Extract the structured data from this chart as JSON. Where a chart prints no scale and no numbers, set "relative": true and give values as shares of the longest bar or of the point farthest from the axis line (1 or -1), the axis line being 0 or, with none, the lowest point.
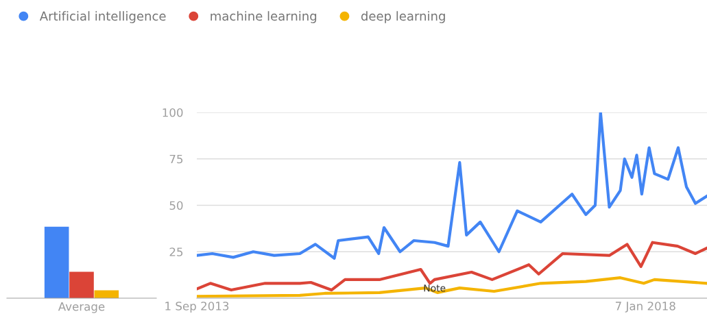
{
  "chart_data": [
    {
      "type": "bar",
      "relative": true,
      "categories": [
        "Average"
      ],
      "series": [
        {
          "color": "#4285f4",
          "values": [
            1
          ]
        },
        {
          "color": "#db4437",
          "values": [
            0.37
          ]
        },
        {
          "color": "#f4b400",
          "values": [
            0.11
          ]
        }
      ]
    },
    {
      "type": "line",
      "legend": "top left",
      "grid": "y",
      "ylim": [
        0,
        100
      ],
      "yticks": [
        25,
        50,
        75,
        100
      ],
      "xlim": [
        "2013-09-01",
        "2018-08-13"
      ],
      "xticks": [
        {
          "value": "2013-09-01",
          "label": "1 Sep 2013"
        },
        {
          "value": "2018-01-07",
          "label": "7 Jan 2018"
        }
      ],
      "annotations": [
        {
          "text": "Note",
          "x": "2015-12-22",
          "y": 5
        }
      ],
      "series": [
        {
          "name": "Artificial intelligence",
          "color": "#4285f4",
          "x": [
            "2013-09-01",
            "2013-10-26",
            "2014-01-08",
            "2014-03-20",
            "2014-06-02",
            "2014-09-01",
            "2014-10-26",
            "2015-01-01",
            "2015-01-15",
            "2015-05-01",
            "2015-06-07",
            "2015-06-26",
            "2015-08-22",
            "2015-10-10",
            "2015-12-22",
            "2016-02-08",
            "2016-03-20",
            "2016-04-13",
            "2016-06-01",
            "2016-08-06",
            "2016-10-10",
            "2017-01-01",
            "2017-04-22",
            "2017-06-10",
            "2017-07-13",
            "2017-08-01",
            "2017-09-01",
            "2017-10-10",
            "2017-10-25",
            "2017-11-20",
            "2017-12-07",
            "2017-12-25",
            "2018-01-20",
            "2018-02-08",
            "2018-03-28",
            "2018-05-03",
            "2018-06-01",
            "2018-07-03",
            "2018-08-13"
          ],
          "values": [
            23,
            24,
            22,
            25,
            23,
            24,
            29,
            21.5,
            31,
            33,
            24,
            38,
            25,
            31,
            30,
            28,
            73,
            34,
            41,
            25,
            47,
            41,
            56,
            45,
            50,
            100,
            49,
            58,
            75,
            65,
            77,
            56,
            81,
            67,
            64,
            81,
            60,
            51,
            55
          ]
        },
        {
          "name": "machine learning",
          "color": "#db4437",
          "x": [
            "2013-09-01",
            "2013-10-19",
            "2014-01-01",
            "2014-05-01",
            "2014-09-01",
            "2014-10-10",
            "2014-12-22",
            "2015-02-08",
            "2015-06-10",
            "2015-11-03",
            "2015-12-06",
            "2015-12-22",
            "2016-05-01",
            "2016-07-13",
            "2016-11-20",
            "2016-12-25",
            "2017-03-20",
            "2017-09-01",
            "2017-11-03",
            "2017-12-22",
            "2018-02-01",
            "2018-05-01",
            "2018-07-03",
            "2018-08-13"
          ],
          "values": [
            5,
            8,
            4.4,
            8,
            8,
            8.5,
            4.4,
            10,
            10,
            15.5,
            8,
            10,
            14,
            10,
            18,
            13,
            24,
            23,
            29,
            17,
            30,
            28,
            24,
            27
          ]
        },
        {
          "name": "deep learning",
          "color": "#f4b400",
          "x": [
            "2013-09-01",
            "2014-09-01",
            "2014-11-28",
            "2015-06-10",
            "2015-11-20",
            "2016-01-01",
            "2016-03-20",
            "2016-07-20",
            "2017-01-01",
            "2017-06-10",
            "2017-10-10",
            "2018-01-01",
            "2018-02-08",
            "2018-08-13"
          ],
          "values": [
            1,
            1.5,
            2.6,
            3,
            5.5,
            3,
            5.5,
            3.7,
            8,
            9,
            11,
            8,
            10,
            8
          ]
        }
      ]
    }
  ]
}
